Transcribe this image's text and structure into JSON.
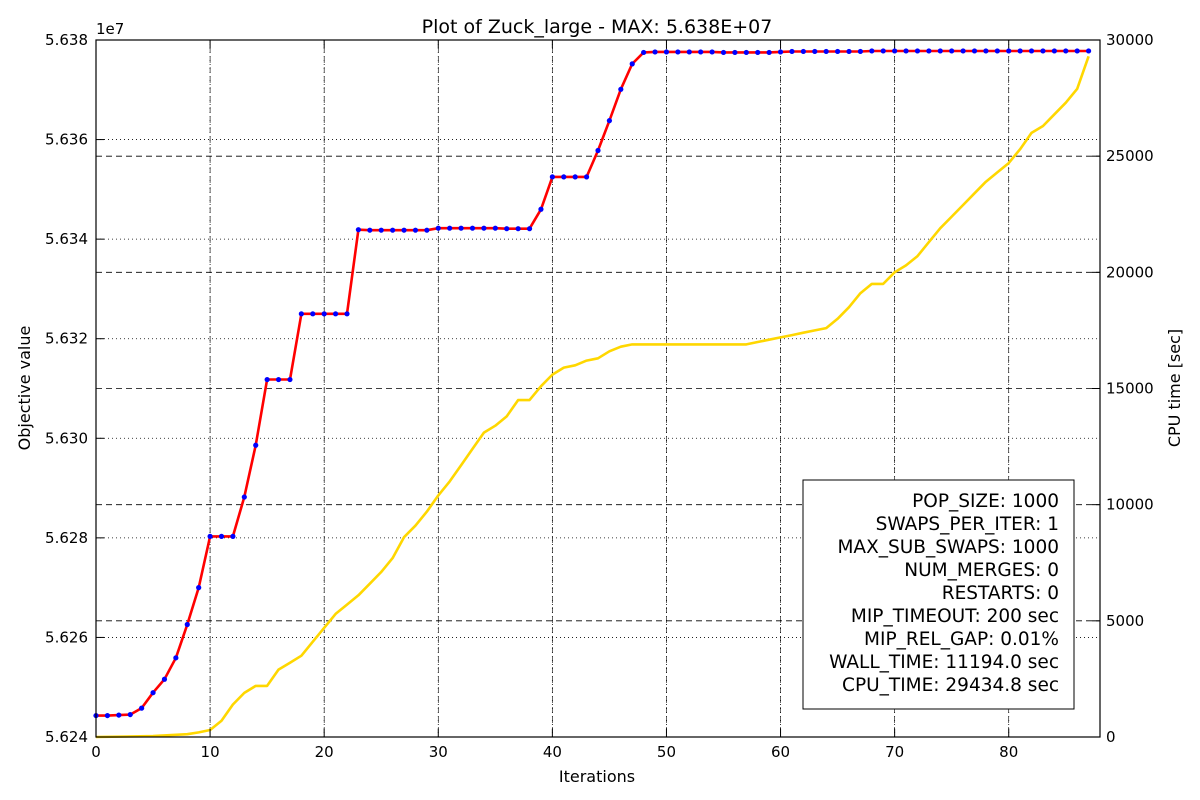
{
  "chart_data": {
    "type": "line",
    "title": "Plot of Zuck_large - MAX: 5.638E+07",
    "xlabel": "Iterations",
    "ylabel": "Objective value",
    "y2label": "CPU time [sec]",
    "y_offset_label": "1e7",
    "xlim": [
      0,
      88
    ],
    "ylim": [
      5.624,
      5.638
    ],
    "y2lim": [
      0,
      30000
    ],
    "x_ticks": [
      0,
      10,
      20,
      30,
      40,
      50,
      60,
      70,
      80
    ],
    "y_ticks": [
      "5.624",
      "5.626",
      "5.628",
      "5.630",
      "5.632",
      "5.634",
      "5.636",
      "5.638"
    ],
    "y2_ticks": [
      0,
      5000,
      10000,
      15000,
      20000,
      25000,
      30000
    ],
    "grid": true,
    "series": [
      {
        "axis": "left",
        "color": "#ff0000",
        "marker_color": "#0000ff",
        "x": [
          0,
          1,
          2,
          3,
          4,
          5,
          6,
          7,
          8,
          9,
          10,
          11,
          12,
          13,
          14,
          15,
          16,
          17,
          18,
          19,
          20,
          21,
          22,
          23,
          24,
          25,
          26,
          27,
          28,
          29,
          30,
          31,
          32,
          33,
          34,
          35,
          36,
          37,
          38,
          39,
          40,
          41,
          42,
          43,
          44,
          45,
          46,
          47,
          48,
          49,
          50,
          51,
          52,
          53,
          54,
          55,
          56,
          57,
          58,
          59,
          60,
          61,
          62,
          63,
          64,
          65,
          66,
          67,
          68,
          69,
          70,
          71,
          72,
          73,
          74,
          75,
          76,
          77,
          78,
          79,
          80,
          81,
          82,
          83,
          84,
          85,
          86,
          87
        ],
        "values": [
          5.62443,
          5.62443,
          5.62444,
          5.62445,
          5.62458,
          5.62489,
          5.62516,
          5.62559,
          5.62626,
          5.627,
          5.62803,
          5.62803,
          5.62803,
          5.62882,
          5.62986,
          5.63118,
          5.63118,
          5.63118,
          5.6325,
          5.6325,
          5.6325,
          5.6325,
          5.6325,
          5.63419,
          5.63418,
          5.63418,
          5.63418,
          5.63418,
          5.63418,
          5.63418,
          5.63422,
          5.63422,
          5.63422,
          5.63422,
          5.63422,
          5.63422,
          5.63421,
          5.63421,
          5.63421,
          5.6346,
          5.63525,
          5.63525,
          5.63525,
          5.63525,
          5.63578,
          5.63638,
          5.63701,
          5.63752,
          5.63775,
          5.63776,
          5.63776,
          5.63776,
          5.63776,
          5.63776,
          5.63776,
          5.63775,
          5.63775,
          5.63775,
          5.63775,
          5.63775,
          5.63776,
          5.63777,
          5.63777,
          5.63777,
          5.63777,
          5.63777,
          5.63777,
          5.63777,
          5.63778,
          5.63778,
          5.63778,
          5.63778,
          5.63778,
          5.63778,
          5.63778,
          5.63778,
          5.63778,
          5.63778,
          5.63778,
          5.63778,
          5.63778,
          5.63778,
          5.63778,
          5.63778,
          5.63778,
          5.63778,
          5.63778,
          5.63778
        ]
      },
      {
        "axis": "right",
        "color": "#ffd700",
        "x": [
          0,
          5,
          8,
          9,
          10,
          11,
          12,
          13,
          14,
          15,
          16,
          17,
          18,
          19,
          20,
          21,
          22,
          23,
          24,
          25,
          26,
          27,
          28,
          29,
          30,
          31,
          32,
          33,
          34,
          35,
          36,
          37,
          38,
          39,
          40,
          41,
          42,
          43,
          44,
          45,
          46,
          47,
          48,
          49,
          50,
          51,
          52,
          53,
          54,
          55,
          56,
          57,
          58,
          59,
          60,
          61,
          62,
          63,
          64,
          65,
          66,
          67,
          68,
          69,
          70,
          71,
          72,
          73,
          74,
          75,
          76,
          77,
          78,
          79,
          80,
          81,
          82,
          83,
          84,
          85,
          86,
          87
        ],
        "values": [
          0,
          40,
          120,
          200,
          300,
          700,
          1400,
          1900,
          2200,
          2200,
          2900,
          3200,
          3500,
          4100,
          4700,
          5300,
          5700,
          6100,
          6600,
          7100,
          7700,
          8600,
          9100,
          9700,
          10400,
          11000,
          11700,
          12400,
          13100,
          13400,
          13800,
          14500,
          14500,
          15100,
          15600,
          15900,
          16000,
          16200,
          16300,
          16600,
          16800,
          16900,
          16900,
          16900,
          16900,
          16900,
          16900,
          16900,
          16900,
          16900,
          16900,
          16900,
          17000,
          17100,
          17200,
          17300,
          17400,
          17500,
          17600,
          18000,
          18500,
          19100,
          19500,
          19500,
          20000,
          20300,
          20700,
          21300,
          21900,
          22400,
          22900,
          23400,
          23900,
          24300,
          24700,
          25300,
          26000,
          26300,
          26800,
          27300,
          27900,
          29300
        ]
      }
    ],
    "info_box": [
      "POP_SIZE: 1000",
      "SWAPS_PER_ITER: 1",
      "MAX_SUB_SWAPS: 1000",
      "NUM_MERGES: 0",
      "RESTARTS: 0",
      "MIP_TIMEOUT: 200 sec",
      "MIP_REL_GAP: 0.01%",
      "WALL_TIME: 11194.0 sec",
      "CPU_TIME: 29434.8 sec"
    ]
  }
}
